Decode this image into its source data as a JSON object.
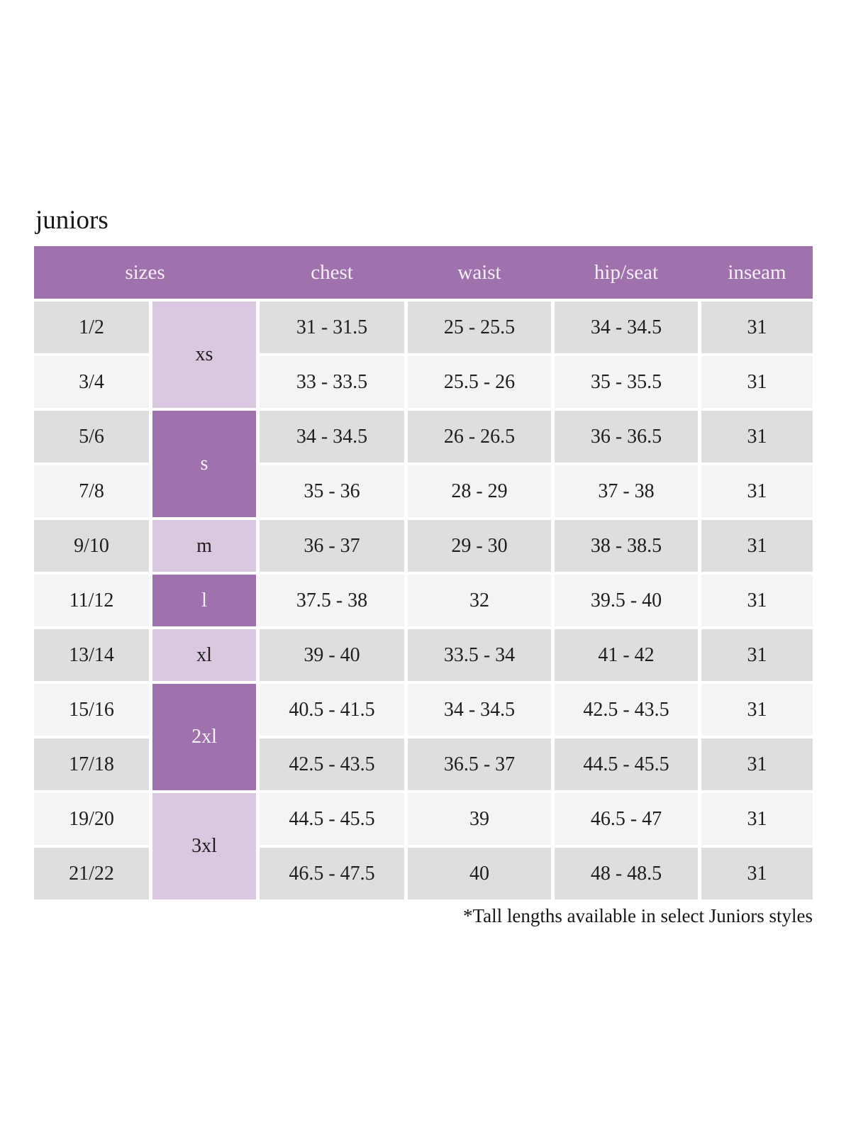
{
  "page": {
    "title": "juniors",
    "footnote": "*Tall lengths available in select Juniors styles"
  },
  "colors": {
    "header_bg": "#9f72ae",
    "header_text": "#f6f0f8",
    "size_group_purple": "#9f72ae",
    "size_group_lavender": "#d9c8df",
    "row_stripe_gray": "#dedede",
    "row_stripe_light": "#f4f4f4",
    "cell_text": "#1e1e1e"
  },
  "table": {
    "headers": {
      "sizes": "sizes",
      "chest": "chest",
      "waist": "waist",
      "hip_seat": "hip/seat",
      "inseam": "inseam"
    },
    "rows": [
      {
        "size": "1/2",
        "letter": "xs",
        "letter_span": 2,
        "letter_style": "lavender",
        "chest": "31 - 31.5",
        "waist": "25 - 25.5",
        "hip_seat": "34 - 34.5",
        "inseam": "31",
        "stripe": "gray"
      },
      {
        "size": "3/4",
        "letter": null,
        "chest": "33 - 33.5",
        "waist": "25.5 - 26",
        "hip_seat": "35 - 35.5",
        "inseam": "31",
        "stripe": "light"
      },
      {
        "size": "5/6",
        "letter": "s",
        "letter_span": 2,
        "letter_style": "purple",
        "chest": "34 - 34.5",
        "waist": "26 - 26.5",
        "hip_seat": "36 - 36.5",
        "inseam": "31",
        "stripe": "gray"
      },
      {
        "size": "7/8",
        "letter": null,
        "chest": "35 - 36",
        "waist": "28 - 29",
        "hip_seat": "37 - 38",
        "inseam": "31",
        "stripe": "light"
      },
      {
        "size": "9/10",
        "letter": "m",
        "letter_span": 1,
        "letter_style": "lavender",
        "chest": "36 - 37",
        "waist": "29 - 30",
        "hip_seat": "38 - 38.5",
        "inseam": "31",
        "stripe": "gray"
      },
      {
        "size": "11/12",
        "letter": "l",
        "letter_span": 1,
        "letter_style": "purple",
        "chest": "37.5 - 38",
        "waist": "32",
        "hip_seat": "39.5 - 40",
        "inseam": "31",
        "stripe": "light"
      },
      {
        "size": "13/14",
        "letter": "xl",
        "letter_span": 1,
        "letter_style": "lavender",
        "chest": "39 - 40",
        "waist": "33.5 - 34",
        "hip_seat": "41 - 42",
        "inseam": "31",
        "stripe": "gray"
      },
      {
        "size": "15/16",
        "letter": "2xl",
        "letter_span": 2,
        "letter_style": "purple",
        "chest": "40.5 - 41.5",
        "waist": "34 - 34.5",
        "hip_seat": "42.5 - 43.5",
        "inseam": "31",
        "stripe": "light"
      },
      {
        "size": "17/18",
        "letter": null,
        "chest": "42.5 - 43.5",
        "waist": "36.5 - 37",
        "hip_seat": "44.5 - 45.5",
        "inseam": "31",
        "stripe": "gray"
      },
      {
        "size": "19/20",
        "letter": "3xl",
        "letter_span": 2,
        "letter_style": "lavender",
        "chest": "44.5 - 45.5",
        "waist": "39",
        "hip_seat": "46.5 - 47",
        "inseam": "31",
        "stripe": "light"
      },
      {
        "size": "21/22",
        "letter": null,
        "chest": "46.5 - 47.5",
        "waist": "40",
        "hip_seat": "48 - 48.5",
        "inseam": "31",
        "stripe": "gray"
      }
    ]
  }
}
